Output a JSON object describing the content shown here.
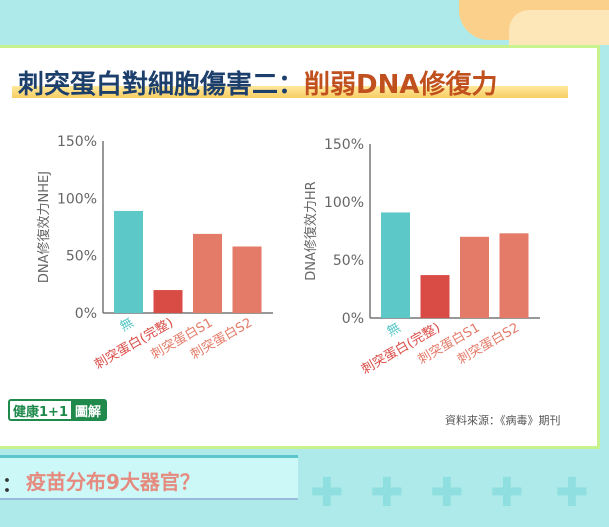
{
  "header": {
    "title_main": "刺突蛋白對細胞傷害二：",
    "title_highlight": "削弱DNA修復力"
  },
  "chart_data": [
    {
      "type": "bar",
      "title": "",
      "ylabel": "DNA修復效力NHEJ",
      "xlabel": "",
      "ylim": [
        0,
        150
      ],
      "yticks": [
        "0%",
        "50%",
        "100%",
        "150%"
      ],
      "categories": [
        "無",
        "刺突蛋白(完整)",
        "刺突蛋白S1",
        "刺突蛋白S2"
      ],
      "values": [
        89,
        20,
        69,
        58
      ],
      "colors": [
        "#5cc8c8",
        "#d94b45",
        "#e47a68",
        "#e47a68"
      ]
    },
    {
      "type": "bar",
      "title": "",
      "ylabel": "DNA修復效力HR",
      "xlabel": "",
      "ylim": [
        0,
        150
      ],
      "yticks": [
        "0%",
        "50%",
        "100%",
        "150%"
      ],
      "categories": [
        "無",
        "刺突蛋白(完整)",
        "刺突蛋白S1",
        "刺突蛋白S2"
      ],
      "values": [
        91,
        37,
        70,
        73
      ],
      "colors": [
        "#5cc8c8",
        "#d94b45",
        "#e47a68",
        "#e47a68"
      ]
    }
  ],
  "footer": {
    "logo_a": "健康1+1",
    "logo_b": "圖解",
    "source": "資料來源：《病毒》期刊"
  },
  "banner": {
    "marker": "：",
    "text": "疫苗分布9大器官？"
  }
}
